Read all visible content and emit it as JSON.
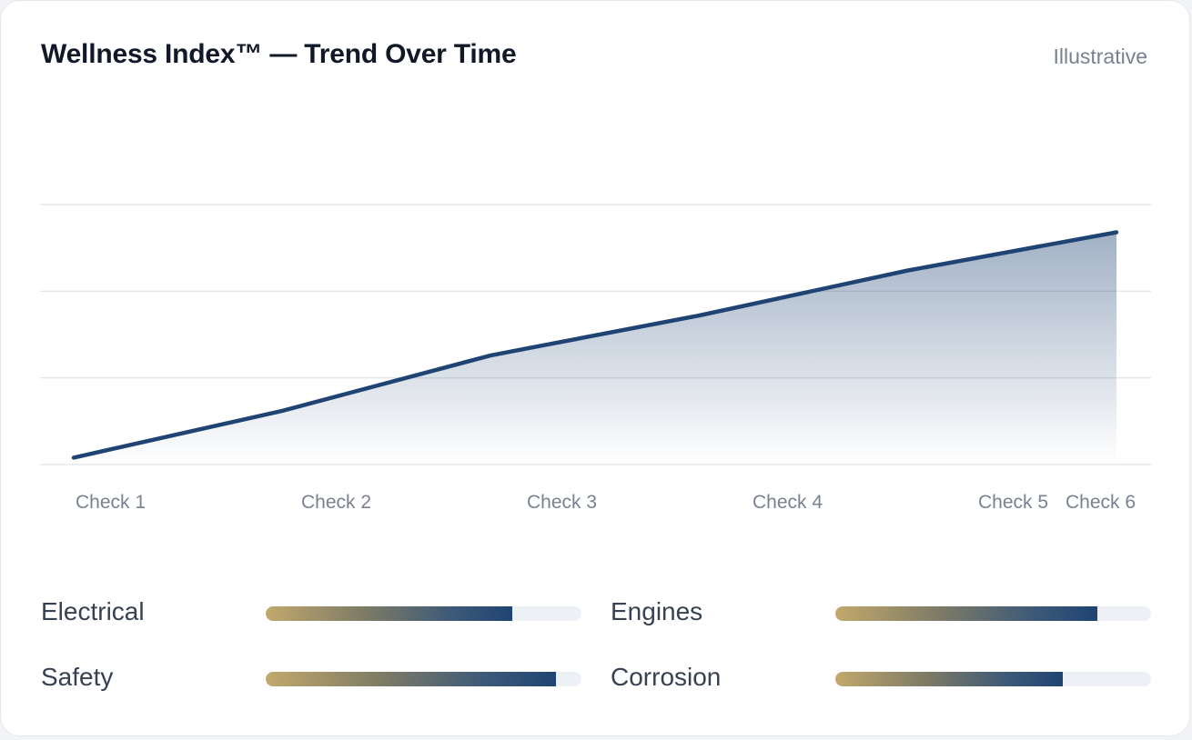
{
  "header": {
    "title": "Wellness Index™ — Trend Over Time",
    "badge": "Illustrative"
  },
  "colors": {
    "line": "#1f4474",
    "area_top": "#1f4474",
    "grid": "#e5e7eb",
    "tick_text": "#7a8190",
    "bar_start": "#c2a86c",
    "bar_end": "#1f4474",
    "track": "#edf0f5"
  },
  "chart_data": {
    "type": "area",
    "title": "Wellness Index™ — Trend Over Time",
    "categories": [
      "Check 1",
      "Check 2",
      "Check 3",
      "Check 4",
      "Check 5",
      "Check 6"
    ],
    "series": [
      {
        "values": [
          4,
          31,
          63,
          86,
          112,
          134
        ]
      }
    ],
    "ylim": [
      0,
      150
    ],
    "y_gridlines": [
      0,
      50,
      100,
      150
    ],
    "grid": true,
    "legend": "none",
    "xlabel": "",
    "ylabel": ""
  },
  "metrics": [
    {
      "label": "Electrical",
      "value": 0.78
    },
    {
      "label": "Engines",
      "value": 0.83
    },
    {
      "label": "Safety",
      "value": 0.92
    },
    {
      "label": "Corrosion",
      "value": 0.72
    }
  ]
}
